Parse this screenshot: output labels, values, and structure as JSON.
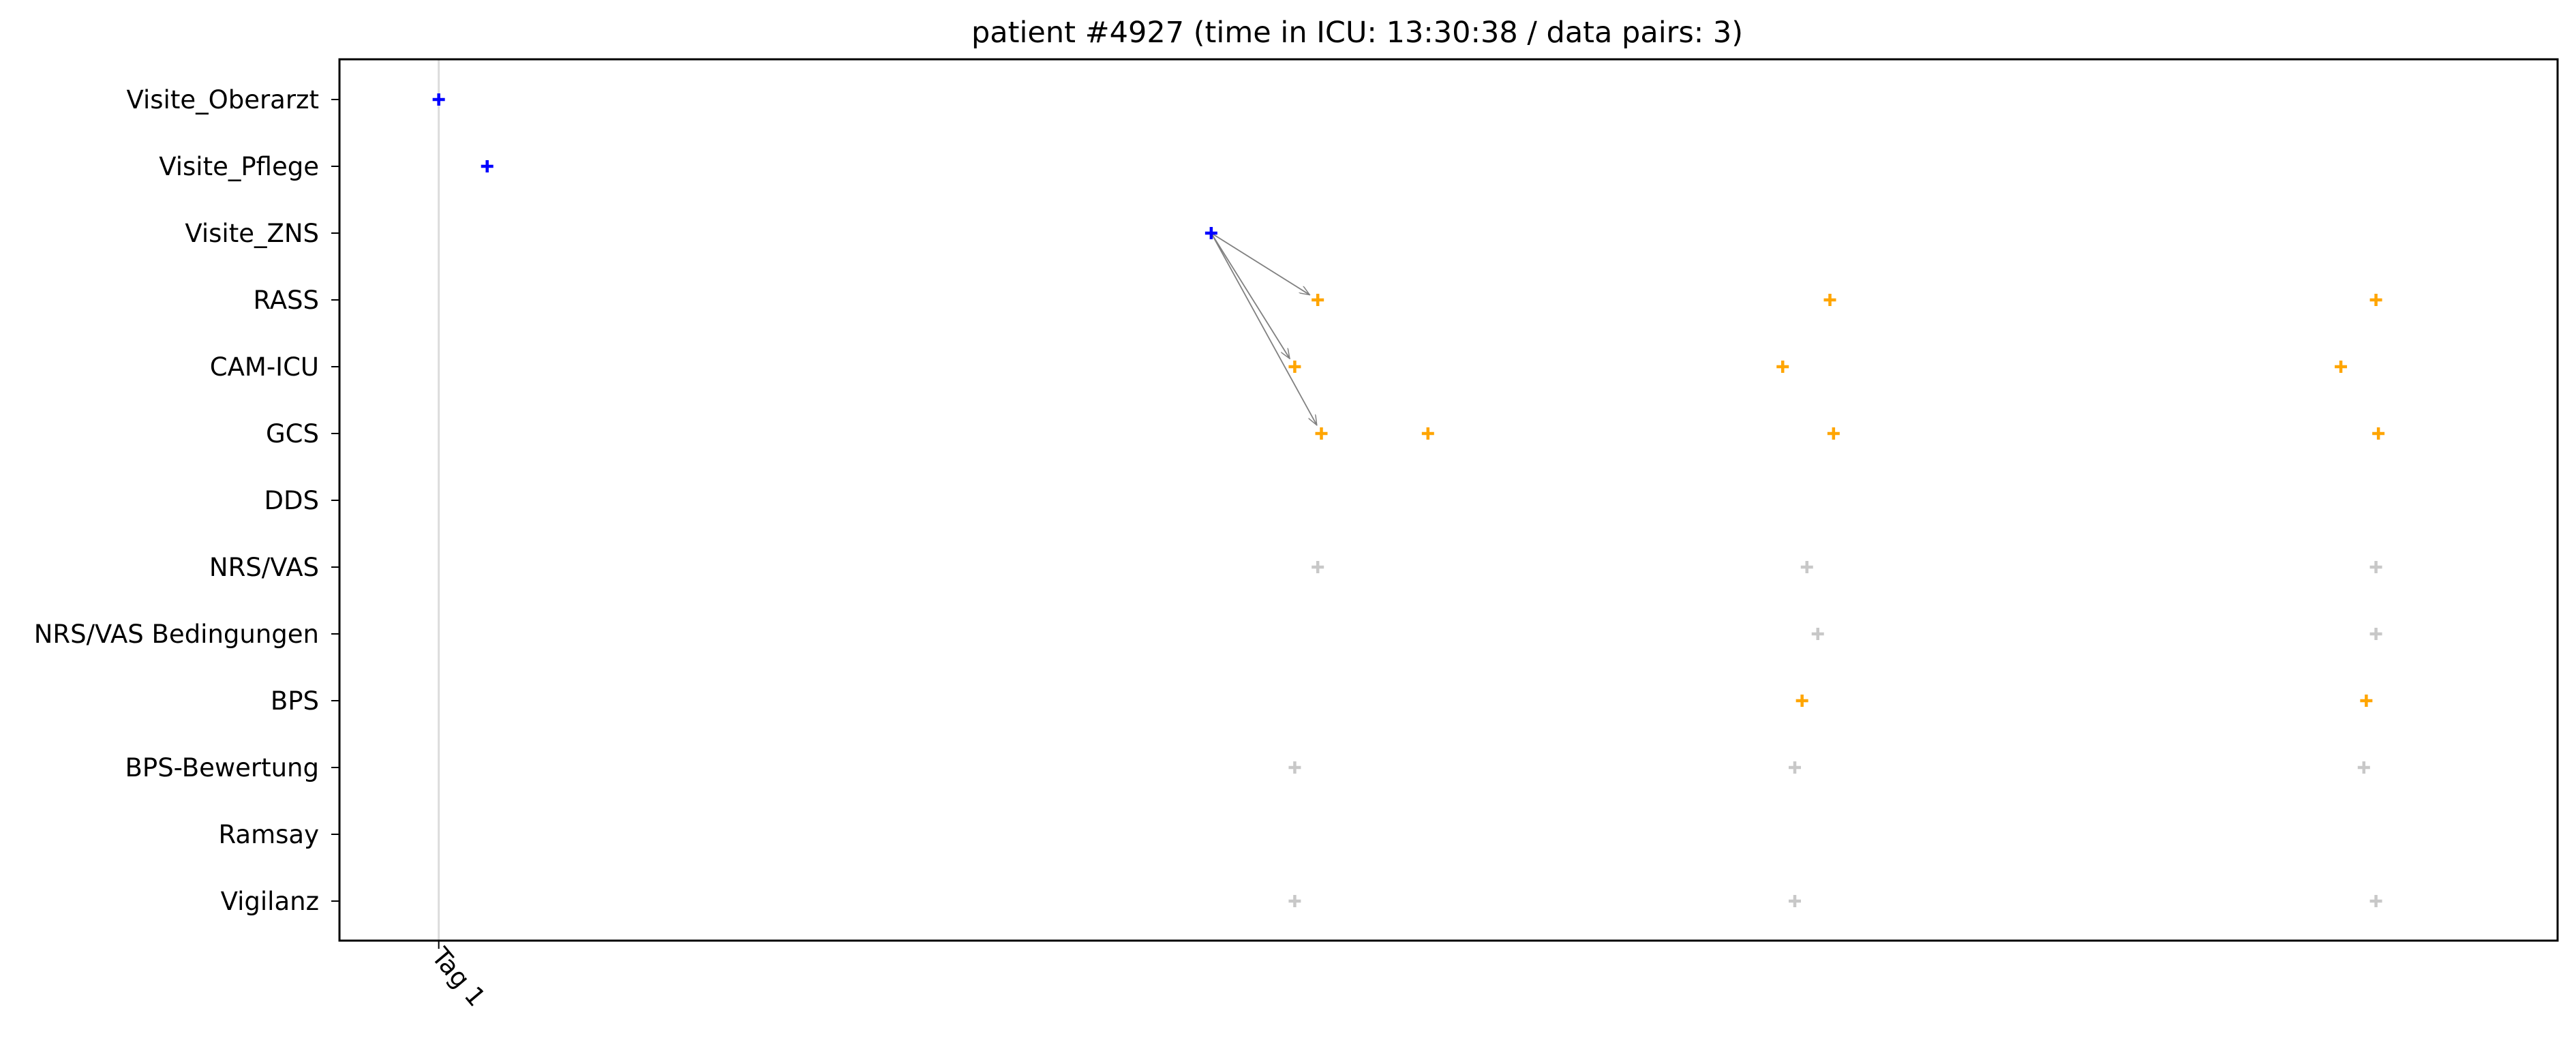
{
  "chart_data": {
    "type": "scatter",
    "title": "patient #4927 (time in ICU: 13:30:38 / data pairs: 3)",
    "y_categories": [
      "Visite_Oberarzt",
      "Visite_Pflege",
      "Visite_ZNS",
      "RASS",
      "CAM-ICU",
      "GCS",
      "DDS",
      "NRS/VAS",
      "NRS/VAS Bedingungen",
      "BPS",
      "BPS-Bewertung",
      "Ramsay",
      "Vigilanz"
    ],
    "xlim": [
      -0.82,
      17.5
    ],
    "x_ticks": [
      {
        "value": 0,
        "label": "Tag 1"
      }
    ],
    "day_lines": [
      0
    ],
    "marker": "+",
    "colors": {
      "visit": "#0000ff",
      "assessment": "#ffa500",
      "other": "#c8c8c8",
      "arrow": "#808080",
      "day_line": "#dcdcdc"
    },
    "series": [
      {
        "color": "visit",
        "points": [
          {
            "x": 0.0,
            "y": "Visite_Oberarzt"
          },
          {
            "x": 0.4,
            "y": "Visite_Pflege"
          },
          {
            "x": 6.38,
            "y": "Visite_ZNS"
          }
        ]
      },
      {
        "color": "assessment",
        "points": [
          {
            "x": 7.26,
            "y": "RASS"
          },
          {
            "x": 11.49,
            "y": "RASS"
          },
          {
            "x": 16.0,
            "y": "RASS"
          },
          {
            "x": 7.07,
            "y": "CAM-ICU"
          },
          {
            "x": 11.1,
            "y": "CAM-ICU"
          },
          {
            "x": 15.71,
            "y": "CAM-ICU"
          },
          {
            "x": 7.29,
            "y": "GCS"
          },
          {
            "x": 8.17,
            "y": "GCS"
          },
          {
            "x": 11.52,
            "y": "GCS"
          },
          {
            "x": 16.02,
            "y": "GCS"
          },
          {
            "x": 11.26,
            "y": "BPS"
          },
          {
            "x": 15.92,
            "y": "BPS"
          }
        ]
      },
      {
        "color": "other",
        "points": [
          {
            "x": 7.26,
            "y": "NRS/VAS"
          },
          {
            "x": 11.3,
            "y": "NRS/VAS"
          },
          {
            "x": 16.0,
            "y": "NRS/VAS"
          },
          {
            "x": 11.39,
            "y": "NRS/VAS Bedingungen"
          },
          {
            "x": 16.0,
            "y": "NRS/VAS Bedingungen"
          },
          {
            "x": 7.07,
            "y": "BPS-Bewertung"
          },
          {
            "x": 11.2,
            "y": "BPS-Bewertung"
          },
          {
            "x": 15.9,
            "y": "BPS-Bewertung"
          },
          {
            "x": 7.07,
            "y": "Vigilanz"
          },
          {
            "x": 11.2,
            "y": "Vigilanz"
          },
          {
            "x": 16.0,
            "y": "Vigilanz"
          }
        ]
      }
    ],
    "pairs": [
      {
        "from": {
          "x": 6.38,
          "y": "Visite_ZNS"
        },
        "to": {
          "x": 7.26,
          "y": "RASS"
        }
      },
      {
        "from": {
          "x": 6.38,
          "y": "Visite_ZNS"
        },
        "to": {
          "x": 7.07,
          "y": "CAM-ICU"
        }
      },
      {
        "from": {
          "x": 6.38,
          "y": "Visite_ZNS"
        },
        "to": {
          "x": 7.29,
          "y": "GCS"
        }
      }
    ]
  }
}
